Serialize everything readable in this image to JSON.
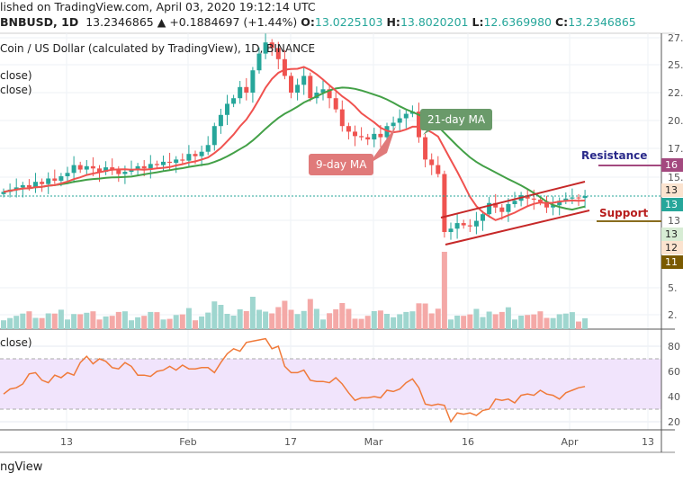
{
  "header": {
    "published": "lished on TradingView.com, April 03, 2020 19:12:14 UTC",
    "symbol": "BNBUSD, 1D",
    "price": "13.2346865",
    "change": "▲ +0.1884697 (+1.44%)",
    "o_label": "O:",
    "o": "13.0225103",
    "h_label": "H:",
    "h": "13.8020201",
    "l_label": "L:",
    "l": "12.6369980",
    "c_label": "C:",
    "c": "13.2346865"
  },
  "chart_title": "Coin / US Dollar (calculated by TradingView), 1D, BINANCE",
  "legend": [
    "close)",
    "close)"
  ],
  "rsi_legend": "close)",
  "footer": "ngView",
  "annotations": {
    "resistance": "Resistance",
    "support": "Support",
    "ma21": "21-day MA",
    "ma9": "9-day MA"
  },
  "axis_tags": [
    {
      "label": "16",
      "color": "#a3497f",
      "text": "#fff"
    },
    {
      "label": "13",
      "color": "#fbe3cf",
      "text": "#333"
    },
    {
      "label": "13",
      "color": "#26a69a",
      "text": "#fff"
    },
    {
      "label": "13",
      "color": "#d7ecd4",
      "text": "#333"
    },
    {
      "label": "12",
      "color": "#fbe3cf",
      "text": "#333"
    },
    {
      "label": "11",
      "color": "#7a5a00",
      "text": "#fff"
    }
  ],
  "colors": {
    "up": "#26a69a",
    "down": "#ef5350",
    "ma9": "#f0524f",
    "ma21": "#43a047",
    "rsi": "#f07a3a",
    "resistance": "#a3497f",
    "support": "#8a6d1f"
  },
  "chart_data": {
    "type": "candlestick",
    "start_date": "2020-01-03",
    "price_ticks": [
      "27.",
      "25.",
      "22.",
      "20.",
      "17.",
      "15.",
      "13",
      "5.",
      "2."
    ],
    "rsi_ticks": [
      "80",
      "60",
      "40",
      "20"
    ],
    "x_ticks": [
      "13",
      "Feb",
      "17",
      "Mar",
      "16",
      "Apr",
      "13"
    ],
    "closes": [
      13.6,
      13.8,
      14.0,
      14.2,
      14.0,
      14.5,
      14.3,
      14.8,
      14.6,
      15.0,
      15.3,
      16.0,
      15.6,
      15.9,
      15.7,
      15.4,
      15.8,
      15.6,
      15.2,
      15.4,
      15.6,
      15.9,
      15.7,
      16.1,
      16.0,
      16.3,
      16.2,
      16.5,
      16.4,
      17.0,
      16.8,
      17.2,
      17.8,
      19.5,
      20.5,
      21.5,
      22.0,
      23.0,
      22.5,
      24.5,
      26.0,
      27.0,
      26.5,
      25.5,
      24.0,
      22.5,
      23.2,
      24.0,
      22.0,
      22.5,
      22.8,
      22.0,
      21.0,
      19.5,
      19.0,
      18.6,
      18.5,
      18.3,
      18.8,
      18.5,
      19.5,
      19.8,
      20.2,
      20.6,
      20.8,
      18.5,
      16.5,
      16.0,
      15.2,
      10.0,
      10.3,
      10.8,
      10.6,
      10.5,
      11.0,
      11.6,
      12.6,
      12.2,
      11.8,
      12.5,
      12.8,
      13.3,
      13.0,
      12.9,
      12.7,
      12.2,
      12.4,
      12.8,
      13.0,
      13.1,
      13.05,
      13.23
    ],
    "rsi": [
      42,
      46,
      47,
      50,
      58,
      59,
      53,
      51,
      57,
      55,
      59,
      57,
      67,
      72,
      66,
      70,
      68,
      63,
      62,
      67,
      64,
      57,
      57,
      56,
      60,
      61,
      64,
      61,
      65,
      62,
      62,
      63,
      63,
      59,
      67,
      74,
      78,
      76,
      83,
      84,
      85,
      86,
      78,
      80,
      64,
      59,
      59,
      61,
      53,
      52,
      52,
      51,
      55,
      50,
      43,
      37,
      39,
      39,
      40,
      39,
      45,
      44,
      46,
      51,
      54,
      47,
      34,
      33,
      34,
      33,
      20,
      27,
      26,
      27,
      25,
      29,
      30,
      38,
      37,
      38,
      35,
      41,
      42,
      41,
      45,
      42,
      41,
      38,
      43,
      45,
      47,
      48
    ]
  }
}
